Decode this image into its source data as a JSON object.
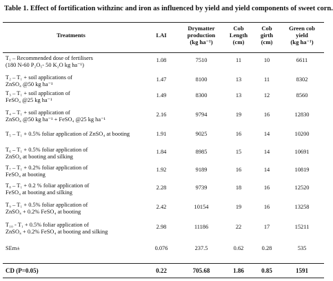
{
  "caption": "Table 1.  Effect of fortification withzinc and iron as influenced by yield and yield components of sweet corn.",
  "headers": {
    "treatments": "Treatments",
    "lai": "LAI",
    "drymatter": "Drymatter\nproduction\n(kg ha⁻¹)",
    "cob_length": "Cob\nLength\n(cm)",
    "cob_girth": "Cob\ngirth\n(cm)",
    "green_cob_yield": "Green cob\nyield\n(kg ha⁻¹)"
  },
  "rows": [
    {
      "treatment": "T₁ – Recommended dose of fertilisers\n(180 N-60 P₂O₅- 50 K₂O kg ha⁻¹)",
      "lai": "1.08",
      "dm": "7510",
      "cl": "11",
      "cg": "10",
      "yield": "6611"
    },
    {
      "treatment": "T₂ – T₁ + soil applications of\nZnSO₄ @50 kg ha⁻¹",
      "lai": "1.47",
      "dm": "8100",
      "cl": "13",
      "cg": "11",
      "yield": "8302"
    },
    {
      "treatment": "T₃ – T₁ + soil application of\nFeSO₄ @25 kg ha⁻¹",
      "lai": "1.49",
      "dm": "8300",
      "cl": "13",
      "cg": "12",
      "yield": "8560"
    },
    {
      "treatment": "T₄ – T₁ + soil application of\nZnSO₄ @50 kg ha⁻¹ + FeSO₄ @25 kg ha⁻¹",
      "lai": "2.16",
      "dm": "9794",
      "cl": "19",
      "cg": "16",
      "yield": "12830"
    },
    {
      "treatment": "T₅ – T₁ + 0.5% foliar application of ZnSO₄ at booting",
      "lai": "1.91",
      "dm": "9025",
      "cl": "16",
      "cg": "14",
      "yield": "10200"
    },
    {
      "treatment": "T₆ – T₁ + 0.5% foliar application of\nZnSO₄ at booting and silking",
      "lai": "1.84",
      "dm": "8985",
      "cl": "15",
      "cg": "14",
      "yield": "10691"
    },
    {
      "treatment": "T₇ – T₁ + 0.2% foliar application of\nFeSO₄ at booting",
      "lai": "1.92",
      "dm": "9189",
      "cl": "16",
      "cg": "14",
      "yield": "10819"
    },
    {
      "treatment": "T₈ – T₁ + 0.2 % foliar application of\nFeSO₄ at booting and silking",
      "lai": "2.28",
      "dm": "9739",
      "cl": "18",
      "cg": "16",
      "yield": "12520"
    },
    {
      "treatment": "T₉ – T₁ + 0.5% foliar application of\nZnSO₄ + 0.2% FeSO₄ at booting",
      "lai": "2.42",
      "dm": "10154",
      "cl": "19",
      "cg": "16",
      "yield": "13258"
    },
    {
      "treatment": "T₁₀ - T₁ + 0.5% foliar application of\nZnSO₄ + 0.2% FeSO₄ at booting and silking",
      "lai": "2.98",
      "dm": "11186",
      "cl": "22",
      "cg": "17",
      "yield": "15211"
    },
    {
      "treatment": "SEm±",
      "lai": "0.076",
      "dm": "237.5",
      "cl": "0.62",
      "cg": "0.28",
      "yield": "535"
    }
  ],
  "cd_row": {
    "treatment": "CD (P=0.05)",
    "lai": "0.22",
    "dm": "705.68",
    "cl": "1.86",
    "cg": "0.85",
    "yield": "1591"
  }
}
